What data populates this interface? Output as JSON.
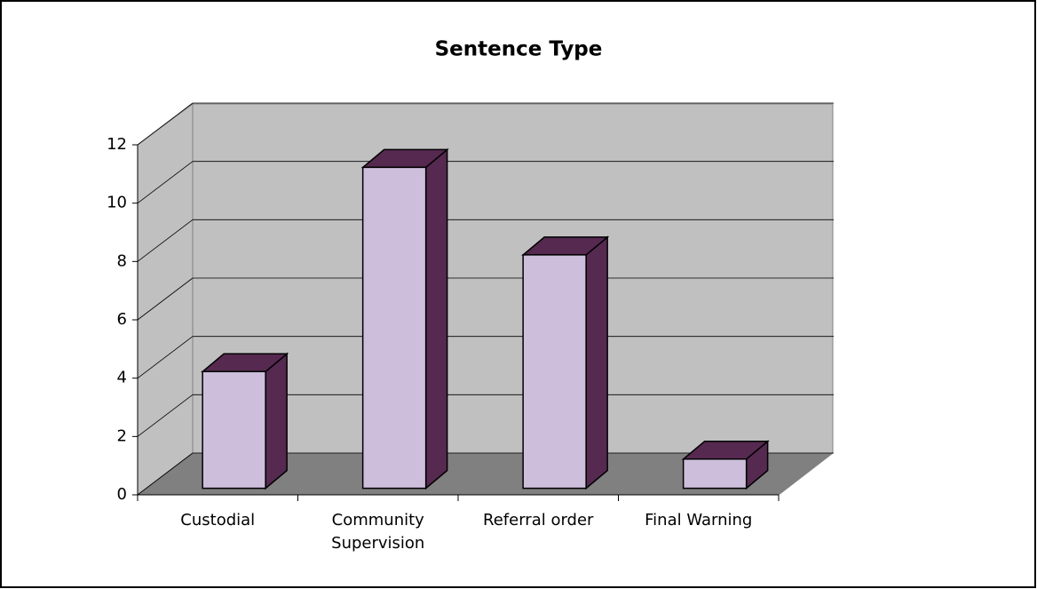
{
  "chart_data": {
    "type": "bar3d",
    "title": "Sentence Type",
    "categories": [
      "Custodial",
      "Community Supervision",
      "Referral order",
      "Final Warning"
    ],
    "values": [
      4,
      11,
      8,
      1
    ],
    "color": "#cdbfdb",
    "ylim": [
      0,
      12
    ],
    "yticks": [
      0,
      2,
      4,
      6,
      8,
      10,
      12
    ],
    "grid": true
  }
}
